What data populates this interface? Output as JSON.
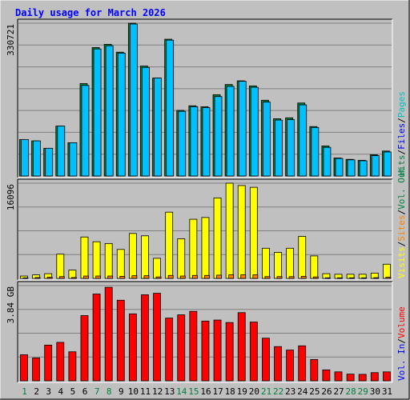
{
  "title": "Daily usage for March 2026",
  "colors": {
    "background": "#c0c0c0",
    "plot": "#c0c0c0",
    "hits": "#008040",
    "files": "#00c0ff",
    "pages": "#00c0c0",
    "visits": "#ffff00",
    "sites": "#ff8000",
    "kbytes": "#ff0000",
    "title": "#0000ff",
    "weekday_label": "#000000",
    "weekend_label": "#008040",
    "grid": "#808080"
  },
  "right_legend": {
    "top": [
      {
        "text": "Hits",
        "color": "#008040"
      },
      {
        "text": "/",
        "color": "#000000"
      },
      {
        "text": "Files",
        "color": "#0000ff"
      },
      {
        "text": "/",
        "color": "#000000"
      },
      {
        "text": "Pages",
        "color": "#00c0c0"
      }
    ],
    "middle": [
      {
        "text": "Visits",
        "color": "#ffff00"
      },
      {
        "text": "/",
        "color": "#000000"
      },
      {
        "text": "Sites",
        "color": "#ff8000"
      },
      {
        "text": "/",
        "color": "#000000"
      },
      {
        "text": "Vol. Out",
        "color": "#008040"
      }
    ],
    "bottom": [
      {
        "text": "Vol. In",
        "color": "#0000ff"
      },
      {
        "text": "/",
        "color": "#000000"
      },
      {
        "text": "Volume",
        "color": "#ff0000"
      }
    ]
  },
  "chart_data": [
    {
      "type": "bar",
      "panel": "hits-files-pages",
      "ymax_label": "330721",
      "ylim": [
        0,
        330721
      ],
      "grid": true,
      "categories": [
        "1",
        "2",
        "3",
        "4",
        "5",
        "6",
        "7",
        "8",
        "9",
        "10",
        "11",
        "12",
        "13",
        "14",
        "15",
        "16",
        "17",
        "18",
        "19",
        "20",
        "21",
        "22",
        "23",
        "24",
        "25",
        "26",
        "27",
        "28",
        "29",
        "30",
        "31"
      ],
      "weekend_days": [
        "1",
        "7",
        "8",
        "14",
        "15",
        "21",
        "22",
        "28",
        "29"
      ],
      "series": [
        {
          "name": "Hits",
          "values": [
            79000,
            76000,
            60000,
            108000,
            72000,
            200000,
            278000,
            285000,
            268000,
            330721,
            238000,
            212000,
            296000,
            142000,
            152000,
            150000,
            176000,
            198000,
            206000,
            195000,
            164000,
            124000,
            126000,
            158000,
            107000,
            65000,
            39000,
            36000,
            34000,
            46000,
            54000
          ]
        },
        {
          "name": "Files",
          "values": [
            79000,
            76000,
            60000,
            108000,
            72000,
            196000,
            275000,
            282000,
            266000,
            329000,
            235000,
            212000,
            294000,
            140000,
            150000,
            148000,
            172000,
            194000,
            205000,
            192000,
            160000,
            121000,
            122000,
            154000,
            105000,
            62000,
            38000,
            35000,
            33000,
            44000,
            52000
          ]
        },
        {
          "name": "Pages",
          "values": [
            0,
            0,
            0,
            0,
            0,
            0,
            0,
            0,
            0,
            0,
            0,
            0,
            0,
            0,
            0,
            0,
            0,
            0,
            0,
            0,
            0,
            0,
            0,
            0,
            0,
            0,
            0,
            0,
            0,
            0,
            0
          ]
        }
      ]
    },
    {
      "type": "bar",
      "panel": "visits-sites",
      "ymax_label": "16096",
      "ylim": [
        0,
        16096
      ],
      "grid": true,
      "categories": [
        "1",
        "2",
        "3",
        "4",
        "5",
        "6",
        "7",
        "8",
        "9",
        "10",
        "11",
        "12",
        "13",
        "14",
        "15",
        "16",
        "17",
        "18",
        "19",
        "20",
        "21",
        "22",
        "23",
        "24",
        "25",
        "26",
        "27",
        "28",
        "29",
        "30",
        "31"
      ],
      "weekend_days": [
        "1",
        "7",
        "8",
        "14",
        "15",
        "21",
        "22",
        "28",
        "29"
      ],
      "series": [
        {
          "name": "Visits",
          "values": [
            400,
            600,
            800,
            4100,
            1400,
            7000,
            6200,
            5900,
            4900,
            7600,
            7200,
            3400,
            11200,
            6700,
            10000,
            10300,
            13600,
            16096,
            15700,
            15400,
            5100,
            4400,
            5100,
            7100,
            3800,
            800,
            700,
            700,
            700,
            900,
            2400
          ]
        },
        {
          "name": "Sites",
          "values": [
            100,
            150,
            200,
            300,
            150,
            400,
            400,
            400,
            350,
            450,
            450,
            250,
            500,
            400,
            500,
            500,
            550,
            600,
            600,
            600,
            300,
            300,
            300,
            350,
            250,
            100,
            100,
            100,
            100,
            120,
            200
          ]
        }
      ]
    },
    {
      "type": "bar",
      "panel": "volume",
      "ymax_label": "3.84 GB",
      "ylim": [
        0,
        3.84
      ],
      "grid": true,
      "categories": [
        "1",
        "2",
        "3",
        "4",
        "5",
        "6",
        "7",
        "8",
        "9",
        "10",
        "11",
        "12",
        "13",
        "14",
        "15",
        "16",
        "17",
        "18",
        "19",
        "20",
        "21",
        "22",
        "23",
        "24",
        "25",
        "26",
        "27",
        "28",
        "29",
        "30",
        "31"
      ],
      "weekend_days": [
        "1",
        "7",
        "8",
        "14",
        "15",
        "21",
        "22",
        "28",
        "29"
      ],
      "series": [
        {
          "name": "Volume",
          "values": [
            1.05,
            0.92,
            1.44,
            1.55,
            1.17,
            2.63,
            3.5,
            3.77,
            3.25,
            2.7,
            3.47,
            3.53,
            2.53,
            2.66,
            2.8,
            2.41,
            2.45,
            2.35,
            2.75,
            2.37,
            1.72,
            1.38,
            1.24,
            1.41,
            0.86,
            0.44,
            0.36,
            0.27,
            0.26,
            0.33,
            0.36
          ]
        }
      ]
    }
  ]
}
